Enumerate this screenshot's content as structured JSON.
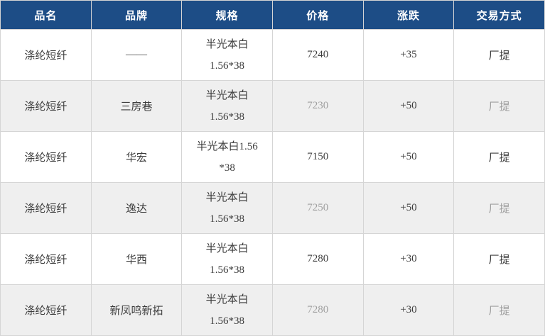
{
  "table": {
    "columns": [
      {
        "key": "name",
        "label": "品名"
      },
      {
        "key": "brand",
        "label": "品牌"
      },
      {
        "key": "spec",
        "label": "规格"
      },
      {
        "key": "price",
        "label": "价格"
      },
      {
        "key": "change",
        "label": "涨跌"
      },
      {
        "key": "trade",
        "label": "交易方式"
      }
    ],
    "rows": [
      {
        "name": "涤纶短纤",
        "brand": "——",
        "spec_lines": [
          "半光本白",
          "1.56*38"
        ],
        "price": "7240",
        "change": "+35",
        "trade": "厂提"
      },
      {
        "name": "涤纶短纤",
        "brand": "三房巷",
        "spec_lines": [
          "半光本白",
          "1.56*38"
        ],
        "price": "7230",
        "change": "+50",
        "trade": "厂提"
      },
      {
        "name": "涤纶短纤",
        "brand": "华宏",
        "spec_lines": [
          "半光本白1.56",
          "*38"
        ],
        "price": "7150",
        "change": "+50",
        "trade": "厂提"
      },
      {
        "name": "涤纶短纤",
        "brand": "逸达",
        "spec_lines": [
          "半光本白",
          "1.56*38"
        ],
        "price": "7250",
        "change": "+50",
        "trade": "厂提"
      },
      {
        "name": "涤纶短纤",
        "brand": "华西",
        "spec_lines": [
          "半光本白",
          "1.56*38"
        ],
        "price": "7280",
        "change": "+30",
        "trade": "厂提"
      },
      {
        "name": "涤纶短纤",
        "brand": "新凤鸣新拓",
        "spec_lines": [
          "半光本白",
          "1.56*38"
        ],
        "price": "7280",
        "change": "+30",
        "trade": "厂提"
      }
    ]
  },
  "colors": {
    "header_bg": "#1d4d86",
    "header_text": "#ffffff",
    "alt_row_bg": "#efefef",
    "row_bg": "#ffffff",
    "border": "#d5d5d5",
    "dark_text": "#3c3c3c",
    "muted_text": "#9e9e9e"
  }
}
